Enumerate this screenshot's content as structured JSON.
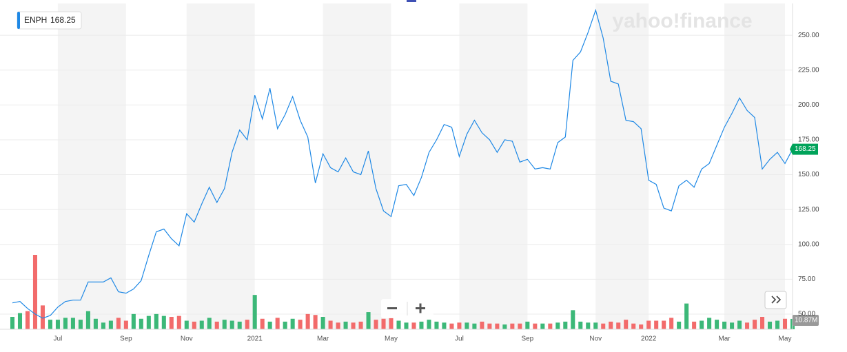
{
  "chart_data": {
    "type": "line",
    "watermark": "yahoo!finance",
    "categories": [
      null,
      null,
      null,
      null,
      null,
      null,
      "Jul",
      null,
      null,
      null,
      null,
      null,
      null,
      null,
      null,
      "Sep",
      null,
      null,
      null,
      null,
      null,
      null,
      null,
      "Nov",
      null,
      null,
      null,
      null,
      null,
      null,
      null,
      null,
      "2021",
      null,
      null,
      null,
      null,
      null,
      null,
      null,
      null,
      "Mar",
      null,
      null,
      null,
      null,
      null,
      null,
      null,
      null,
      "May",
      null,
      null,
      null,
      null,
      null,
      null,
      null,
      null,
      "Jul",
      null,
      null,
      null,
      null,
      null,
      null,
      null,
      null,
      "Sep",
      null,
      null,
      null,
      null,
      null,
      null,
      null,
      null,
      "Nov",
      null,
      null,
      null,
      null,
      null,
      null,
      "2022",
      null,
      null,
      null,
      null,
      null,
      null,
      null,
      null,
      null,
      "Mar",
      null,
      null,
      null,
      null,
      null,
      null,
      null,
      "May",
      null
    ],
    "series": [
      {
        "name": "ENPH",
        "color": "#1e88e5",
        "values": [
          58,
          59,
          54,
          50,
          47,
          49,
          55,
          59,
          60,
          60,
          73,
          73,
          73,
          76,
          66,
          65,
          68,
          74,
          92,
          109,
          111,
          104,
          99,
          122,
          116,
          129,
          141,
          130,
          140,
          166,
          182,
          175,
          207,
          190,
          212,
          183,
          193,
          206,
          189,
          177,
          144,
          165,
          155,
          152,
          162,
          152,
          150,
          167,
          140,
          124,
          120,
          142,
          143,
          135,
          148,
          166,
          175,
          186,
          184,
          163,
          179,
          189,
          180,
          175,
          166,
          175,
          174,
          159,
          161,
          154,
          155,
          154,
          173,
          177,
          232,
          238,
          252,
          268,
          248,
          217,
          215,
          189,
          188,
          183,
          146,
          143,
          126,
          124,
          142,
          146,
          141,
          154,
          158,
          171,
          184,
          194,
          205,
          196,
          191,
          154,
          161,
          166,
          158,
          168.25
        ]
      },
      {
        "type": "bar",
        "up_color": "#3cb878",
        "down_color": "#f26b6b",
        "values": [
          13,
          17,
          19,
          78,
          25,
          10,
          10,
          12,
          12,
          10,
          19,
          11,
          7,
          9,
          12,
          9,
          16,
          11,
          14,
          16,
          14,
          13,
          14,
          9,
          8,
          9,
          12,
          8,
          10,
          9,
          8,
          10,
          36,
          11,
          8,
          12,
          8,
          11,
          10,
          16,
          15,
          13,
          9,
          7,
          8,
          7,
          8,
          18,
          10,
          11,
          12,
          9,
          7,
          7,
          8,
          10,
          8,
          7,
          6,
          7,
          7,
          6,
          8,
          6,
          6,
          5,
          6,
          6,
          8,
          6,
          6,
          6,
          7,
          8,
          20,
          8,
          7,
          7,
          6,
          8,
          7,
          10,
          6,
          5,
          9,
          9,
          9,
          12,
          8,
          27,
          8,
          9,
          12,
          10,
          8,
          7,
          9,
          7,
          10,
          13,
          8,
          9,
          11,
          10.87
        ],
        "value_labels": [
          null,
          null,
          null,
          null,
          null,
          null,
          null,
          null,
          null,
          null,
          null,
          null,
          null,
          null,
          null,
          null,
          null,
          null,
          null,
          null,
          null,
          null,
          null,
          null,
          null,
          null,
          null,
          null,
          null,
          null,
          null,
          null,
          null,
          null,
          null,
          null,
          null,
          null,
          null,
          null,
          null,
          null,
          null,
          null,
          null,
          null,
          null,
          null,
          null,
          null,
          null,
          null,
          null,
          null,
          null,
          null,
          null,
          null,
          null,
          null,
          null,
          null,
          null,
          null,
          null,
          null,
          null,
          null,
          null,
          null,
          null,
          null,
          null,
          null,
          null,
          null,
          null,
          null,
          null,
          null,
          null,
          null,
          null,
          null,
          null,
          null,
          null,
          null,
          null,
          null,
          null,
          null,
          null,
          null,
          null,
          null,
          null,
          null,
          null,
          null,
          null,
          null,
          null,
          "10.87M"
        ]
      }
    ],
    "last_tag_color": "#00a35a",
    "ylim": [
      39.1,
      272.8
    ],
    "yticks": [
      {
        "value": 50,
        "label": "50.00"
      },
      {
        "value": 75,
        "label": "75.00"
      },
      {
        "value": 100,
        "label": "100.00"
      },
      {
        "value": 125,
        "label": "125.00"
      },
      {
        "value": 150,
        "label": "150.00"
      },
      {
        "value": 175,
        "label": "175.00"
      },
      {
        "value": 200,
        "label": "200.00"
      },
      {
        "value": 225,
        "label": "225.00"
      },
      {
        "value": 250,
        "label": "250.00"
      }
    ],
    "grid": true
  }
}
